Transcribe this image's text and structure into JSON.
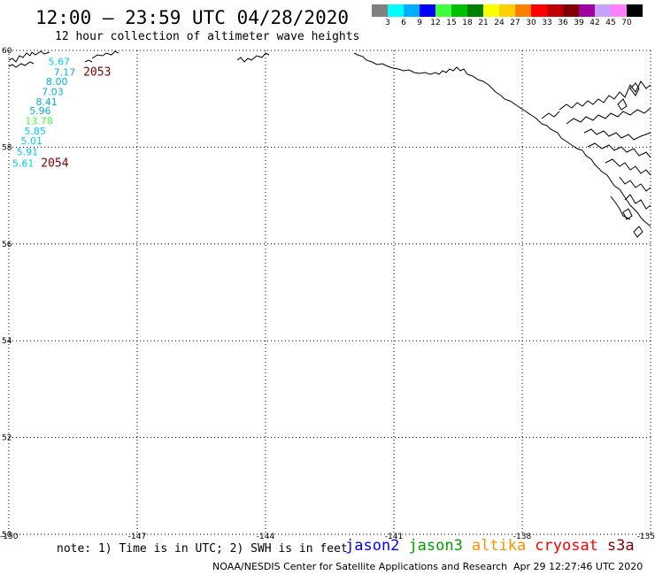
{
  "header": {
    "title": "12:00 – 23:59 UTC 04/28/2020",
    "subtitle": "12 hour collection of altimeter wave heights"
  },
  "scale": {
    "colors": [
      "#808080",
      "#00ffff",
      "#00b0ff",
      "#0000ff",
      "#40ff40",
      "#00c000",
      "#008000",
      "#ffff00",
      "#ffd000",
      "#ff8000",
      "#ff0000",
      "#c00000",
      "#800000",
      "#a000a0",
      "#c8a0ff",
      "#ff80ff",
      "#000000"
    ],
    "ticks": [
      "3",
      "6",
      "9",
      "12",
      "15",
      "18",
      "21",
      "24",
      "27",
      "30",
      "33",
      "36",
      "39",
      "42",
      "45",
      "70"
    ],
    "unit": "(ft)"
  },
  "map": {
    "lat_labels": [
      "60",
      "58",
      "56",
      "54",
      "52",
      "50"
    ],
    "lon_labels": [
      "-150",
      "-147",
      "-144",
      "-141",
      "-138",
      "-135"
    ],
    "observations": [
      {
        "text": "5.67",
        "lon": -149.08,
        "lat": 59.7,
        "color": "#00ccff"
      },
      {
        "text": "7.17",
        "lon": -148.95,
        "lat": 59.48,
        "color": "#00b0e0"
      },
      {
        "text": "8.00",
        "lon": -149.13,
        "lat": 59.29,
        "color": "#00b0e0"
      },
      {
        "text": "7.03",
        "lon": -149.23,
        "lat": 59.08,
        "color": "#00b0e0"
      },
      {
        "text": "8.41",
        "lon": -149.37,
        "lat": 58.87,
        "color": "#00b0e0"
      },
      {
        "text": "5.96",
        "lon": -149.52,
        "lat": 58.68,
        "color": "#00b0e0"
      },
      {
        "text": "13.78",
        "lon": -149.62,
        "lat": 58.47,
        "color": "#40ff40"
      },
      {
        "text": "5.85",
        "lon": -149.64,
        "lat": 58.26,
        "color": "#00ccff"
      },
      {
        "text": "5.01",
        "lon": -149.72,
        "lat": 58.06,
        "color": "#00ccff"
      },
      {
        "text": "5.91",
        "lon": -149.82,
        "lat": 57.83,
        "color": "#00ccff"
      },
      {
        "text": "5.61",
        "lon": -149.92,
        "lat": 57.6,
        "color": "#00ccff"
      }
    ],
    "pass_labels": [
      {
        "text": "2053",
        "lon": -148.26,
        "lat": 59.48,
        "color": "#800000"
      },
      {
        "text": "2054",
        "lon": -149.25,
        "lat": 57.6,
        "color": "#800000"
      }
    ]
  },
  "footer": {
    "note": "note: 1) Time is in UTC; 2) SWH is in feet",
    "satellites": [
      {
        "name": "jason2",
        "color": "#0000ff"
      },
      {
        "name": "jason3",
        "color": "#00a000"
      },
      {
        "name": "altika",
        "color": "#ff9000"
      },
      {
        "name": "cryosat",
        "color": "#ff0000"
      },
      {
        "name": "s3a",
        "color": "#800000"
      }
    ],
    "credit": "NOAA/NESDIS Center for Satellite Applications and Research",
    "timestamp": "Apr 29 12:27:46 UTC 2020"
  }
}
